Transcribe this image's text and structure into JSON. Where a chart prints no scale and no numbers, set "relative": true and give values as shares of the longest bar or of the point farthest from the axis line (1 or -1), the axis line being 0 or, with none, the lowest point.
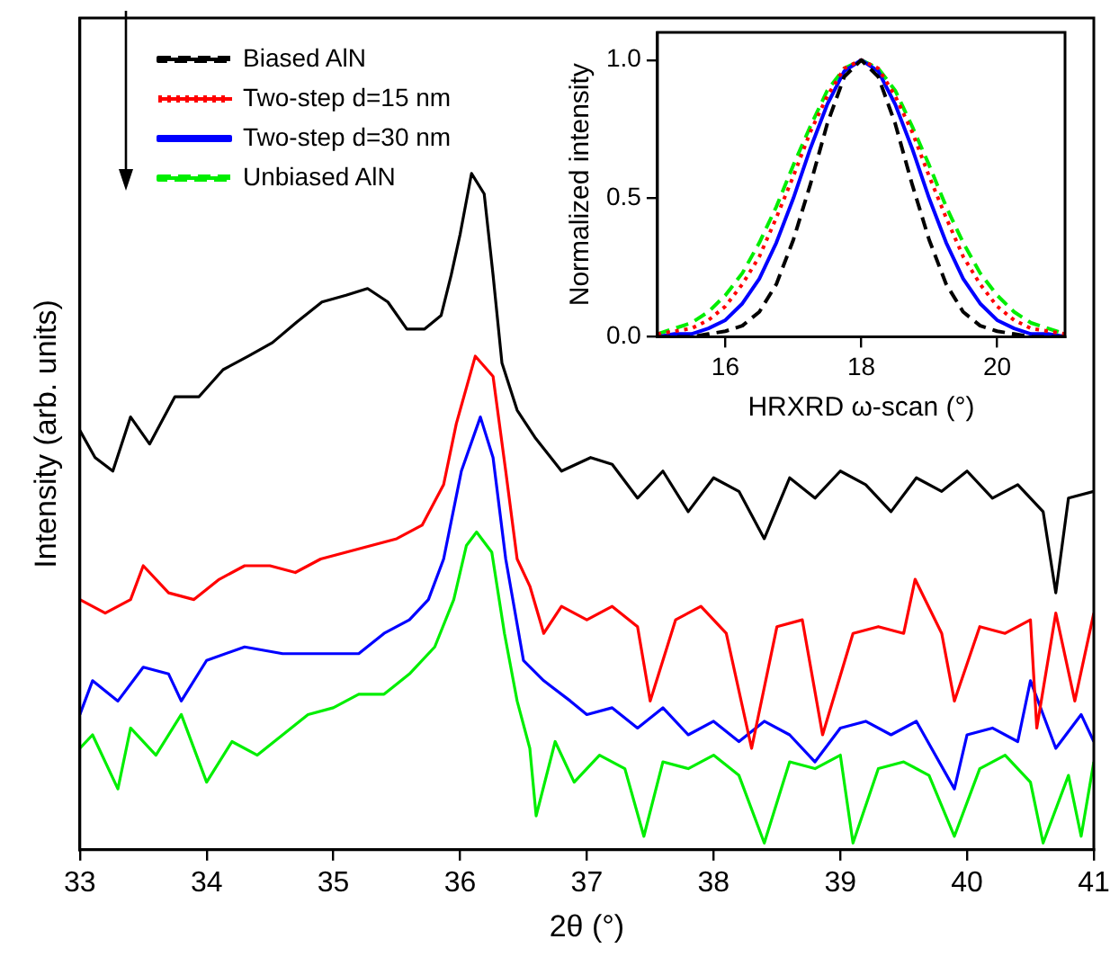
{
  "chart_data": [
    {
      "type": "line",
      "relative": true,
      "xlabel": "2θ (°)",
      "ylabel": "Intensity (arb. units)",
      "xlim": [
        33,
        41
      ],
      "xticks": [
        33,
        34,
        35,
        36,
        37,
        38,
        39,
        40,
        41
      ],
      "series": [
        {
          "color": "#000000",
          "x": [
            33.0,
            33.12,
            33.26,
            33.4,
            33.55,
            33.75,
            33.94,
            34.13,
            34.33,
            34.52,
            34.71,
            34.91,
            35.1,
            35.27,
            35.43,
            35.58,
            35.72,
            35.85,
            35.93,
            36.0,
            36.09,
            36.19,
            36.26,
            36.33,
            36.45,
            36.59,
            36.8,
            37.03,
            37.2,
            37.4,
            37.6,
            37.8,
            38.0,
            38.2,
            38.4,
            38.6,
            38.8,
            39.0,
            39.2,
            39.4,
            39.6,
            39.8,
            40.0,
            40.2,
            40.4,
            40.6,
            40.7,
            40.8,
            41.0
          ],
          "values": [
            0.62,
            0.58,
            0.56,
            0.64,
            0.6,
            0.67,
            0.67,
            0.71,
            0.73,
            0.75,
            0.78,
            0.81,
            0.82,
            0.83,
            0.81,
            0.77,
            0.77,
            0.79,
            0.85,
            0.91,
            1,
            0.97,
            0.85,
            0.72,
            0.65,
            0.61,
            0.56,
            0.58,
            0.57,
            0.52,
            0.56,
            0.5,
            0.55,
            0.53,
            0.46,
            0.55,
            0.52,
            0.56,
            0.54,
            0.5,
            0.55,
            0.53,
            0.56,
            0.52,
            0.54,
            0.5,
            0.38,
            0.52,
            0.53
          ]
        },
        {
          "color": "#ff0000",
          "x": [
            33.0,
            33.2,
            33.4,
            33.5,
            33.7,
            33.9,
            34.1,
            34.3,
            34.5,
            34.7,
            34.9,
            35.1,
            35.3,
            35.5,
            35.7,
            35.87,
            35.97,
            36.12,
            36.26,
            36.36,
            36.45,
            36.55,
            36.66,
            36.8,
            37.0,
            37.2,
            37.4,
            37.5,
            37.7,
            37.9,
            38.1,
            38.3,
            38.5,
            38.7,
            38.86,
            39.1,
            39.3,
            39.5,
            39.59,
            39.8,
            39.9,
            40.1,
            40.3,
            40.5,
            40.55,
            40.7,
            40.85,
            41.0
          ],
          "values": [
            0.37,
            0.35,
            0.37,
            0.42,
            0.38,
            0.37,
            0.4,
            0.42,
            0.42,
            0.41,
            0.43,
            0.44,
            0.45,
            0.46,
            0.48,
            0.54,
            0.63,
            0.73,
            0.7,
            0.56,
            0.43,
            0.39,
            0.32,
            0.36,
            0.34,
            0.36,
            0.33,
            0.22,
            0.34,
            0.36,
            0.32,
            0.15,
            0.33,
            0.34,
            0.17,
            0.32,
            0.33,
            0.32,
            0.4,
            0.32,
            0.22,
            0.33,
            0.32,
            0.34,
            0.18,
            0.35,
            0.22,
            0.35
          ]
        },
        {
          "color": "#0000ff",
          "x": [
            33.0,
            33.1,
            33.3,
            33.5,
            33.7,
            33.8,
            34.0,
            34.3,
            34.6,
            34.9,
            35.2,
            35.4,
            35.6,
            35.75,
            35.87,
            36.01,
            36.16,
            36.26,
            36.36,
            36.5,
            36.66,
            36.87,
            37.0,
            37.2,
            37.4,
            37.6,
            37.8,
            38.0,
            38.2,
            38.4,
            38.6,
            38.8,
            39.0,
            39.2,
            39.4,
            39.6,
            39.9,
            40.0,
            40.2,
            40.4,
            40.5,
            40.7,
            40.9,
            41.0
          ],
          "values": [
            0.2,
            0.25,
            0.22,
            0.27,
            0.26,
            0.22,
            0.28,
            0.3,
            0.29,
            0.29,
            0.29,
            0.32,
            0.34,
            0.37,
            0.43,
            0.56,
            0.64,
            0.58,
            0.43,
            0.28,
            0.25,
            0.22,
            0.2,
            0.21,
            0.18,
            0.21,
            0.17,
            0.19,
            0.16,
            0.19,
            0.17,
            0.13,
            0.18,
            0.19,
            0.17,
            0.19,
            0.09,
            0.17,
            0.18,
            0.16,
            0.25,
            0.15,
            0.2,
            0.16
          ]
        },
        {
          "color": "#00ee00",
          "x": [
            33.0,
            33.1,
            33.3,
            33.4,
            33.6,
            33.8,
            34.0,
            34.2,
            34.4,
            34.6,
            34.8,
            35.0,
            35.2,
            35.4,
            35.6,
            35.8,
            35.95,
            36.05,
            36.13,
            36.25,
            36.35,
            36.45,
            36.55,
            36.6,
            36.75,
            36.9,
            37.1,
            37.3,
            37.45,
            37.6,
            37.8,
            38.0,
            38.2,
            38.4,
            38.6,
            38.8,
            39.0,
            39.1,
            39.3,
            39.5,
            39.7,
            39.9,
            40.1,
            40.3,
            40.5,
            40.6,
            40.8,
            40.9,
            41.0
          ],
          "values": [
            0.15,
            0.17,
            0.09,
            0.18,
            0.14,
            0.2,
            0.1,
            0.16,
            0.14,
            0.17,
            0.2,
            0.21,
            0.23,
            0.23,
            0.26,
            0.3,
            0.37,
            0.45,
            0.47,
            0.44,
            0.32,
            0.22,
            0.15,
            0.05,
            0.16,
            0.1,
            0.14,
            0.12,
            0.02,
            0.13,
            0.12,
            0.14,
            0.11,
            0.01,
            0.13,
            0.12,
            0.14,
            0.01,
            0.12,
            0.13,
            0.11,
            0.02,
            0.12,
            0.14,
            0.1,
            0.01,
            0.11,
            0.02,
            0.13
          ]
        }
      ]
    },
    {
      "type": "line",
      "xlabel": "HRXRD ω-scan (°)",
      "ylabel": "Normalized intensity",
      "xlim": [
        15,
        21
      ],
      "ylim": [
        0,
        1.1
      ],
      "xticks": [
        16,
        18,
        20
      ],
      "yticks": [
        {
          "value": 0,
          "label": "0.0"
        },
        {
          "value": 0.5,
          "label": "0.5"
        },
        {
          "value": 1,
          "label": "1.0"
        }
      ],
      "legend": "left",
      "x": [
        15,
        15.25,
        15.5,
        15.75,
        16,
        16.25,
        16.5,
        16.75,
        17,
        17.25,
        17.5,
        17.75,
        18,
        18.25,
        18.5,
        18.75,
        19,
        19.25,
        19.5,
        19.75,
        20,
        20.25,
        20.5,
        20.75,
        21
      ],
      "series": [
        {
          "name": "Biased AlN",
          "color": "#000000",
          "line_style": "dashed",
          "values": [
            0,
            0,
            0,
            0.01,
            0.02,
            0.04,
            0.09,
            0.19,
            0.35,
            0.55,
            0.77,
            0.94,
            1,
            0.94,
            0.77,
            0.55,
            0.35,
            0.19,
            0.09,
            0.04,
            0.02,
            0.01,
            0,
            0,
            0
          ]
        },
        {
          "name": "Two-step d=15 nm",
          "color": "#ff0000",
          "line_style": "dotted",
          "values": [
            0.01,
            0.02,
            0.03,
            0.06,
            0.11,
            0.19,
            0.29,
            0.43,
            0.58,
            0.74,
            0.87,
            0.97,
            1,
            0.97,
            0.87,
            0.74,
            0.58,
            0.43,
            0.29,
            0.19,
            0.11,
            0.06,
            0.03,
            0.02,
            0.01
          ]
        },
        {
          "name": "Two-step d=30 nm",
          "color": "#0000ff",
          "line_style": "solid",
          "values": [
            0,
            0.01,
            0.01,
            0.03,
            0.06,
            0.12,
            0.21,
            0.34,
            0.5,
            0.68,
            0.84,
            0.96,
            1,
            0.96,
            0.84,
            0.68,
            0.5,
            0.34,
            0.21,
            0.12,
            0.06,
            0.03,
            0.01,
            0.01,
            0
          ]
        },
        {
          "name": "Unbiased AlN",
          "color": "#00ee00",
          "line_style": "dashed",
          "values": [
            0.01,
            0.03,
            0.05,
            0.09,
            0.15,
            0.23,
            0.34,
            0.47,
            0.62,
            0.76,
            0.89,
            0.97,
            1,
            0.97,
            0.89,
            0.76,
            0.62,
            0.47,
            0.34,
            0.23,
            0.15,
            0.09,
            0.05,
            0.03,
            0.01
          ]
        }
      ]
    }
  ]
}
